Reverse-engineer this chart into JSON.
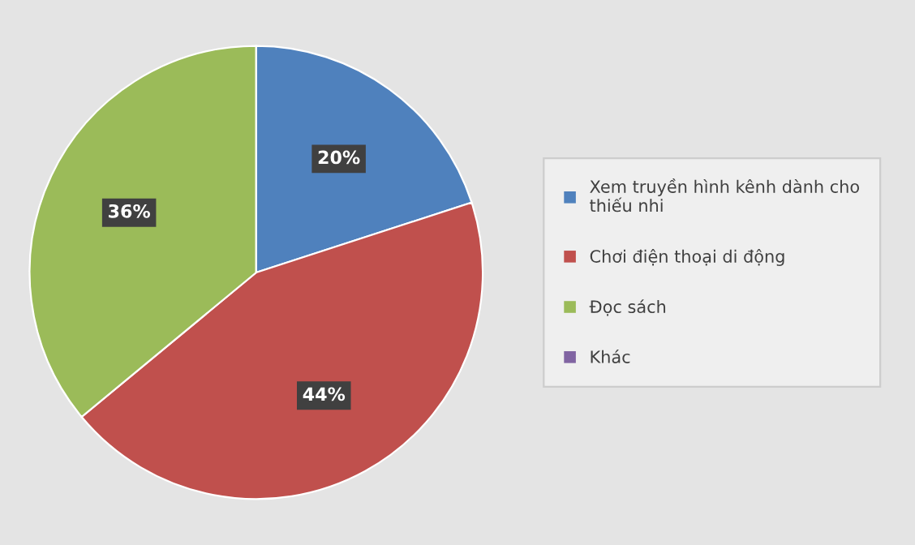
{
  "chart_data": {
    "type": "pie",
    "categories": [
      "Xem truyền hình kênh dành cho\nthiếu nhi",
      "Chơi điện thoại di động",
      "Đọc sách",
      "Khác"
    ],
    "values": [
      20,
      44,
      36,
      0
    ],
    "colors": [
      "#4f81bd",
      "#c0504d",
      "#9bbb59",
      "#8064a2"
    ],
    "value_labels": [
      "20%",
      "44%",
      "36%",
      null
    ],
    "legend": "right"
  }
}
